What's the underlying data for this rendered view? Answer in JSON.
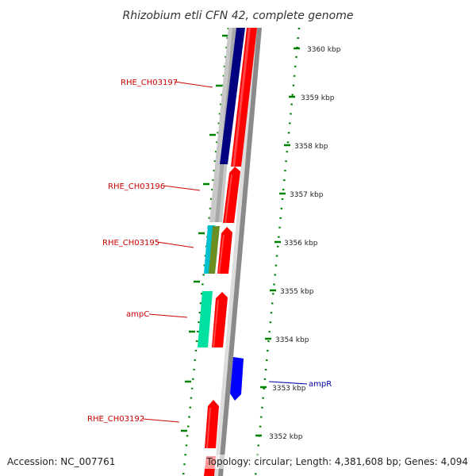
{
  "title": "Rhizobium etli CFN 42, complete genome",
  "footer": {
    "accession": "Accession: NC_007761",
    "topology": "Topology: circular; Length: 4,381,608 bp; Genes: 4,094"
  },
  "ruler": {
    "unit": "kbp",
    "ticks": [
      "3360 kbp",
      "3359 kbp",
      "3358 kbp",
      "3357 kbp",
      "3356 kbp",
      "3355 kbp",
      "3354 kbp",
      "3353 kbp",
      "3352 kbp"
    ]
  },
  "gene_labels": [
    {
      "id": "rhe-ch03197",
      "text": "RHE_CH03197",
      "color": "#cc0000"
    },
    {
      "id": "rhe-ch03196",
      "text": "RHE_CH03196",
      "color": "#cc0000"
    },
    {
      "id": "rhe-ch03195",
      "text": "RHE_CH03195",
      "color": "#cc0000"
    },
    {
      "id": "ampc",
      "text": "ampC",
      "color": "#cc0000"
    },
    {
      "id": "ampr",
      "text": "ampR",
      "color": "#0000aa"
    },
    {
      "id": "rhe-ch03192",
      "text": "RHE_CH03192",
      "color": "#cc0000"
    }
  ],
  "colors": {
    "cds_forward": "#ff0000",
    "cds_reverse": "#0000ff",
    "backbone": "#888888",
    "ruler_dots": "#008000",
    "orf_navy": "#000080",
    "orf_gray": "#c0c0c0",
    "orf_cyan": "#00c0d0",
    "orf_olive": "#808000",
    "orf_green": "#00e0a0"
  }
}
